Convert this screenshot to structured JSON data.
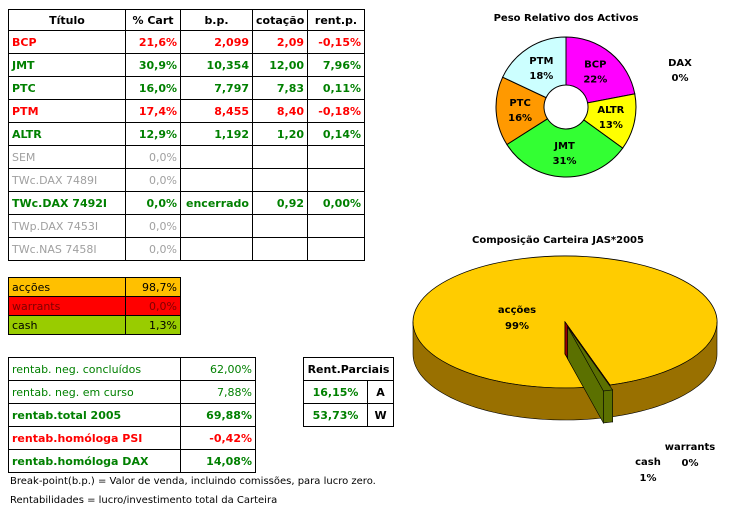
{
  "table": {
    "header": [
      "Título",
      "% Cart",
      "b.p.",
      "cotação",
      "rent.p."
    ],
    "rows": [
      {
        "cells": [
          "BCP",
          "21,6%",
          "2,099",
          "2,09",
          "-0,15%"
        ],
        "color": "#ff0000",
        "bold": true
      },
      {
        "cells": [
          "JMT",
          "30,9%",
          "10,354",
          "12,00",
          "7,96%"
        ],
        "color": "#008000",
        "bold": true
      },
      {
        "cells": [
          "PTC",
          "16,0%",
          "7,797",
          "7,83",
          "0,11%"
        ],
        "color": "#008000",
        "bold": true
      },
      {
        "cells": [
          "PTM",
          "17,4%",
          "8,455",
          "8,40",
          "-0,18%"
        ],
        "color": "#ff0000",
        "bold": true
      },
      {
        "cells": [
          "ALTR",
          "12,9%",
          "1,192",
          "1,20",
          "0,14%"
        ],
        "color": "#008000",
        "bold": true
      },
      {
        "cells": [
          "SEM",
          "0,0%"
        ],
        "color": "#a0a0a0",
        "bold": false
      },
      {
        "cells": [
          "TWc.DAX 7489I",
          "0,0%"
        ],
        "color": "#a0a0a0",
        "bold": false
      },
      {
        "cells": [
          "TWc.DAX 7492I",
          "0,0%",
          "encerrado",
          "0,92",
          "0,00%"
        ],
        "color": "#008000",
        "bold": true
      },
      {
        "cells": [
          "TWp.DAX 7453I",
          "0,0%"
        ],
        "color": "#a0a0a0",
        "bold": false
      },
      {
        "cells": [
          "TWc.NAS 7458I",
          "0,0%"
        ],
        "color": "#a0a0a0",
        "bold": false
      }
    ]
  },
  "allocation": {
    "rows": [
      {
        "cells": [
          "acções",
          "98,7%"
        ],
        "bg": "#ffc000",
        "color": "#000000"
      },
      {
        "cells": [
          "warrants",
          "0,0%"
        ],
        "bg": "#ff0000",
        "color": "#800000"
      },
      {
        "cells": [
          "cash",
          "1,3%"
        ],
        "bg": "#99cc00",
        "color": "#000000"
      }
    ]
  },
  "returns": {
    "rows": [
      {
        "cells": [
          "rentab. neg. concluídos",
          "62,00%"
        ],
        "color": "#008000",
        "bold": false
      },
      {
        "cells": [
          "rentab. neg. em curso",
          "7,88%"
        ],
        "color": "#008000",
        "bold": false
      },
      {
        "cells": [
          "rentab.total 2005",
          "69,88%"
        ],
        "color": "#008000",
        "bold": true
      },
      {
        "cells": [
          "rentab.homóloga PSI",
          "-0,42%"
        ],
        "color": "#ff0000",
        "bold": true
      },
      {
        "cells": [
          "rentab.homóloga DAX",
          "14,08%"
        ],
        "color": "#008000",
        "bold": true
      }
    ]
  },
  "partials": {
    "header": "Rent.Parciais",
    "rows": [
      [
        "16,15%",
        "A"
      ],
      [
        "53,73%",
        "W"
      ]
    ]
  },
  "notes": [
    "Break-point(b.p.) = Valor de venda, incluindo comissões, para lucro zero.",
    "Rentabilidades = lucro/investimento total da Carteira"
  ],
  "chart_data": [
    {
      "type": "donut",
      "title": "Peso Relativo dos Activos",
      "categories": [
        "BCP",
        "ALTR",
        "JMT",
        "PTC",
        "PTM",
        "DAX"
      ],
      "values": [
        22,
        13,
        31,
        16,
        18,
        0
      ],
      "value_labels": [
        "22%",
        "13%",
        "31%",
        "16%",
        "18%",
        "0%"
      ],
      "colors": [
        "#ff00ff",
        "#ffff00",
        "#33ff33",
        "#ff9900",
        "#ccffff",
        "#800080"
      ]
    },
    {
      "type": "pie3d",
      "title": "Composição Carteira JAS*2005",
      "categories": [
        "acções",
        "warrants",
        "cash"
      ],
      "values": [
        99,
        0,
        1
      ],
      "value_labels": [
        "99%",
        "0%",
        "1%"
      ],
      "colors": [
        "#ffcc00",
        "#ff0000",
        "#99cc00"
      ]
    }
  ]
}
